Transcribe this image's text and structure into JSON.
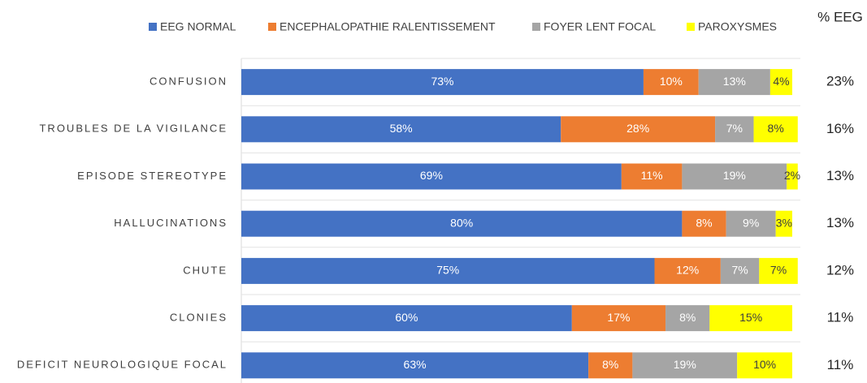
{
  "chart_data": {
    "type": "stacked-bar-horizontal",
    "categories": [
      "CONFUSION",
      "TROUBLES DE LA VIGILANCE",
      "EPISODE STEREOTYPE",
      "HALLUCINATIONS",
      "CHUTE",
      "CLONIES",
      "DEFICIT NEUROLOGIQUE FOCAL"
    ],
    "xlim": [
      0,
      100
    ],
    "series": [
      {
        "name": "EEG NORMAL",
        "color": "#4472c4",
        "label_color": "#ffffff",
        "values": [
          73,
          58,
          69,
          80,
          75,
          60,
          63
        ],
        "value_labels": [
          "73%",
          "58%",
          "69%",
          "80%",
          "75%",
          "60%",
          "63%"
        ]
      },
      {
        "name": "ENCEPHALOPATHIE RALENTISSEMENT",
        "color": "#ed7d31",
        "label_color": "#ffffff",
        "values": [
          10,
          28,
          11,
          8,
          12,
          17,
          8
        ],
        "value_labels": [
          "10%",
          "28%",
          "11%",
          "8%",
          "12%",
          "17%",
          "8%"
        ]
      },
      {
        "name": "FOYER LENT FOCAL",
        "color": "#a5a5a5",
        "label_color": "#ffffff",
        "values": [
          13,
          7,
          19,
          9,
          7,
          8,
          19
        ],
        "value_labels": [
          "13%",
          "7%",
          "19%",
          "9%",
          "7%",
          "8%",
          "19%"
        ]
      },
      {
        "name": "PAROXYSMES",
        "color": "#ffff00",
        "label_color": "#404040",
        "values": [
          4,
          8,
          2,
          3,
          7,
          15,
          10
        ],
        "value_labels": [
          "4%",
          "8%",
          "2%",
          "3%",
          "7%",
          "15%",
          "10%"
        ]
      }
    ],
    "eeg_share": {
      "label": "% EEG",
      "values": [
        23,
        16,
        13,
        13,
        12,
        11,
        11
      ],
      "value_labels": [
        "23%",
        "16%",
        "13%",
        "13%",
        "12%",
        "11%",
        "11%"
      ]
    }
  }
}
